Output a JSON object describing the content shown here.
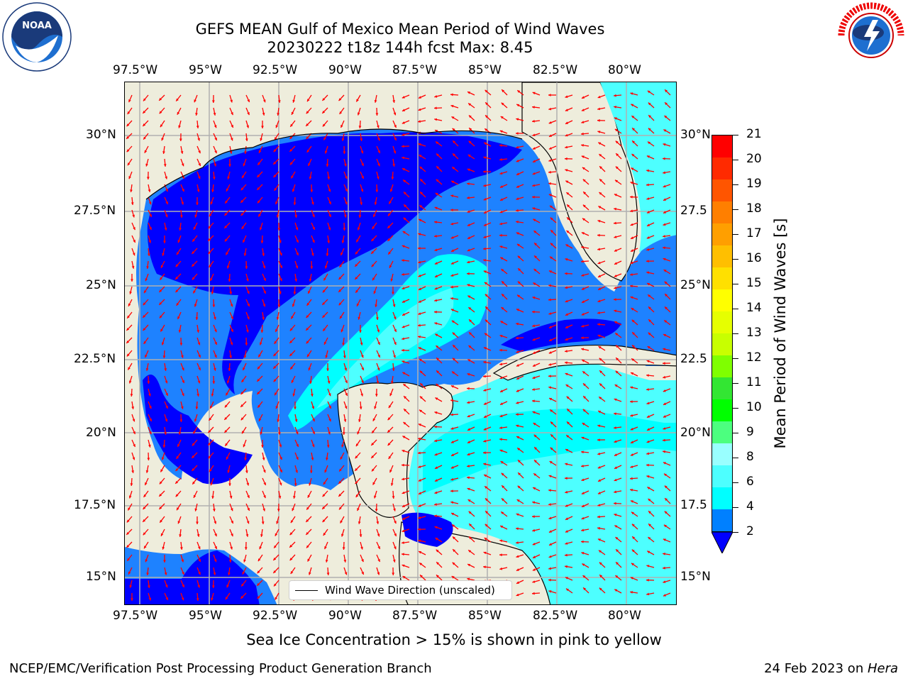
{
  "header": {
    "title_line1": "GEFS MEAN Gulf of Mexico Mean Period of Wind Waves",
    "title_line2": "20230222 t18z 144h fcst   Max: 8.45"
  },
  "logos": {
    "left": "NOAA",
    "left_ring_text": "NATIONAL OCEANIC AND ATMOSPHERIC ADMINISTRATION · U.S. DEPARTMENT OF COMMERCE",
    "right_ring_text": "NATIONAL WEATHER SERVICE"
  },
  "axes": {
    "lon_labels": [
      "97.5°W",
      "95°W",
      "92.5°W",
      "90°W",
      "87.5°W",
      "85°W",
      "82.5°W",
      "80°W"
    ],
    "lat_labels": [
      "30°N",
      "27.5°N",
      "25°N",
      "22.5°N",
      "20°N",
      "17.5°N",
      "15°N"
    ],
    "lat_labels_right": [
      "30°N",
      "27.5",
      "25°N",
      "22.5",
      "20°N",
      "17.5",
      "15°N"
    ]
  },
  "colorbar": {
    "label": "Mean Period of Wind Waves [s]",
    "ticks": [
      "21",
      "20",
      "19",
      "18",
      "17",
      "16",
      "15",
      "14",
      "13",
      "12",
      "11",
      "10",
      "9",
      "8",
      "6",
      "4",
      "2"
    ],
    "colors": [
      "#ff0000",
      "#ff2a00",
      "#ff5500",
      "#ff7f00",
      "#ff9f00",
      "#ffbf00",
      "#ffe000",
      "#ffff00",
      "#e6ff00",
      "#c8ff00",
      "#7fff00",
      "#33e633",
      "#00ff00",
      "#4cff7f",
      "#99ffff",
      "#4dffff",
      "#00ffff",
      "#0080ff"
    ],
    "extend_color": "#0000ff"
  },
  "legend": {
    "label": "Wind Wave Direction (unscaled)"
  },
  "footer": {
    "note": "Sea Ice Concentration > 15% is shown in pink to yellow",
    "left": "NCEP/EMC/Verification Post Processing Product Generation Branch",
    "right_prefix": "24 Feb 2023 on ",
    "right_host": "Hera"
  },
  "colors": {
    "land": "#eeeddc",
    "deep_blue": "#0000ff",
    "mid_blue": "#1e82ff",
    "cyan": "#00ffff",
    "light_cyan": "#4dffff",
    "arrow": "#ff0000",
    "grid": "#b0b0b0"
  }
}
